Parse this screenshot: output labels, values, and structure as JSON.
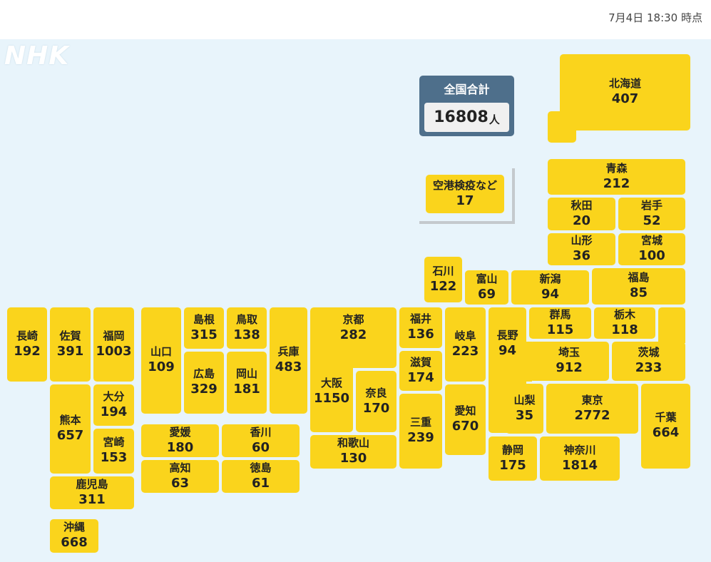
{
  "timestamp": "7月4日 18:30 時点",
  "logo": "NHK",
  "total": {
    "label": "全国合計",
    "value": "16808",
    "unit": "人"
  },
  "colors": {
    "tile": "#fad41c",
    "total_bg": "#4e6f8b",
    "map_bg": "#e8f4fb"
  },
  "prefectures": [
    {
      "id": "hokkaido",
      "name": "北海道",
      "count": "407"
    },
    {
      "id": "aomori",
      "name": "青森",
      "count": "212"
    },
    {
      "id": "akita",
      "name": "秋田",
      "count": "20"
    },
    {
      "id": "iwate",
      "name": "岩手",
      "count": "52"
    },
    {
      "id": "yamagata",
      "name": "山形",
      "count": "36"
    },
    {
      "id": "miyagi",
      "name": "宮城",
      "count": "100"
    },
    {
      "id": "ishikawa",
      "name": "石川",
      "count": "122"
    },
    {
      "id": "toyama",
      "name": "富山",
      "count": "69"
    },
    {
      "id": "niigata",
      "name": "新潟",
      "count": "94"
    },
    {
      "id": "fukushima",
      "name": "福島",
      "count": "85"
    },
    {
      "id": "gunma",
      "name": "群馬",
      "count": "115"
    },
    {
      "id": "tochigi",
      "name": "栃木",
      "count": "118"
    },
    {
      "id": "saitama",
      "name": "埼玉",
      "count": "912"
    },
    {
      "id": "ibaraki",
      "name": "茨城",
      "count": "233"
    },
    {
      "id": "nagano",
      "name": "長野",
      "count": "94"
    },
    {
      "id": "gifu",
      "name": "岐阜",
      "count": "223"
    },
    {
      "id": "fukui",
      "name": "福井",
      "count": "136"
    },
    {
      "id": "shiga",
      "name": "滋賀",
      "count": "174"
    },
    {
      "id": "kyoto",
      "name": "京都",
      "count": "282"
    },
    {
      "id": "osaka",
      "name": "大阪",
      "count": "1150"
    },
    {
      "id": "nara",
      "name": "奈良",
      "count": "170"
    },
    {
      "id": "mie",
      "name": "三重",
      "count": "239"
    },
    {
      "id": "wakayama",
      "name": "和歌山",
      "count": "130"
    },
    {
      "id": "aichi",
      "name": "愛知",
      "count": "670"
    },
    {
      "id": "yamanashi",
      "name": "山梨",
      "count": "35"
    },
    {
      "id": "tokyo",
      "name": "東京",
      "count": "2772"
    },
    {
      "id": "chiba",
      "name": "千葉",
      "count": "664"
    },
    {
      "id": "shizuoka",
      "name": "静岡",
      "count": "175"
    },
    {
      "id": "kanagawa",
      "name": "神奈川",
      "count": "1814"
    },
    {
      "id": "hyogo",
      "name": "兵庫",
      "count": "483"
    },
    {
      "id": "tottori",
      "name": "鳥取",
      "count": "138"
    },
    {
      "id": "shimane",
      "name": "島根",
      "count": "315"
    },
    {
      "id": "okayama",
      "name": "岡山",
      "count": "181"
    },
    {
      "id": "hiroshima",
      "name": "広島",
      "count": "329"
    },
    {
      "id": "yamaguchi",
      "name": "山口",
      "count": "109"
    },
    {
      "id": "ehime",
      "name": "愛媛",
      "count": "180"
    },
    {
      "id": "kagawa",
      "name": "香川",
      "count": "60"
    },
    {
      "id": "kochi",
      "name": "高知",
      "count": "63"
    },
    {
      "id": "tokushima",
      "name": "徳島",
      "count": "61"
    },
    {
      "id": "fukuoka",
      "name": "福岡",
      "count": "1003"
    },
    {
      "id": "saga",
      "name": "佐賀",
      "count": "391"
    },
    {
      "id": "nagasaki",
      "name": "長崎",
      "count": "192"
    },
    {
      "id": "oita",
      "name": "大分",
      "count": "194"
    },
    {
      "id": "kumamoto",
      "name": "熊本",
      "count": "657"
    },
    {
      "id": "miyazaki",
      "name": "宮崎",
      "count": "153"
    },
    {
      "id": "kagoshima",
      "name": "鹿児島",
      "count": "311"
    },
    {
      "id": "okinawa",
      "name": "沖縄",
      "count": "668"
    },
    {
      "id": "airport",
      "name": "空港検疫など",
      "count": "17"
    }
  ]
}
